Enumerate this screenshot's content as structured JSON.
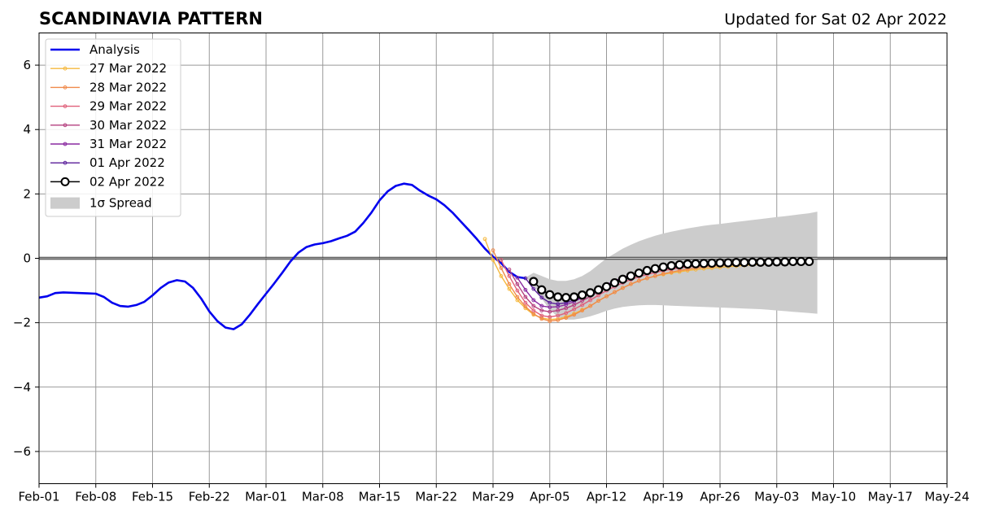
{
  "chart_data": {
    "type": "line",
    "title": "SCANDINAVIA PATTERN",
    "subtitle": "Updated for Sat 02 Apr 2022",
    "xlabel": "",
    "ylabel": "",
    "ylim": [
      -7,
      7
    ],
    "yticks": [
      -6,
      -4,
      -2,
      0,
      2,
      4,
      6
    ],
    "ytick_labels": [
      "−6",
      "−4",
      "−2",
      "0",
      "2",
      "4",
      "6"
    ],
    "xlim": [
      "2022-02-01",
      "2022-05-24"
    ],
    "xticks": [
      "2022-02-01",
      "2022-02-08",
      "2022-02-15",
      "2022-02-22",
      "2022-03-01",
      "2022-03-08",
      "2022-03-15",
      "2022-03-22",
      "2022-03-29",
      "2022-04-05",
      "2022-04-12",
      "2022-04-19",
      "2022-04-26",
      "2022-05-03",
      "2022-05-10",
      "2022-05-17",
      "2022-05-24"
    ],
    "xtick_labels": [
      "Feb-01",
      "Feb-08",
      "Feb-15",
      "Feb-22",
      "Mar-01",
      "Mar-08",
      "Mar-15",
      "Mar-22",
      "Mar-29",
      "Apr-05",
      "Apr-12",
      "Apr-19",
      "Apr-26",
      "May-03",
      "May-10",
      "May-17",
      "May-24"
    ],
    "grid": true,
    "legend_position": "top-left",
    "analysis": {
      "name": "Analysis",
      "color": "#0000ee",
      "x": [
        "2022-02-01",
        "2022-02-02",
        "2022-02-03",
        "2022-02-04",
        "2022-02-05",
        "2022-02-06",
        "2022-02-07",
        "2022-02-08",
        "2022-02-09",
        "2022-02-10",
        "2022-02-11",
        "2022-02-12",
        "2022-02-13",
        "2022-02-14",
        "2022-02-15",
        "2022-02-16",
        "2022-02-17",
        "2022-02-18",
        "2022-02-19",
        "2022-02-20",
        "2022-02-21",
        "2022-02-22",
        "2022-02-23",
        "2022-02-24",
        "2022-02-25",
        "2022-02-26",
        "2022-02-27",
        "2022-02-28",
        "2022-03-01",
        "2022-03-02",
        "2022-03-03",
        "2022-03-04",
        "2022-03-05",
        "2022-03-06",
        "2022-03-07",
        "2022-03-08",
        "2022-03-09",
        "2022-03-10",
        "2022-03-11",
        "2022-03-12",
        "2022-03-13",
        "2022-03-14",
        "2022-03-15",
        "2022-03-16",
        "2022-03-17",
        "2022-03-18",
        "2022-03-19",
        "2022-03-20",
        "2022-03-21",
        "2022-03-22",
        "2022-03-23",
        "2022-03-24",
        "2022-03-25",
        "2022-03-26",
        "2022-03-27",
        "2022-03-28",
        "2022-03-29",
        "2022-03-30",
        "2022-03-31",
        "2022-04-01",
        "2022-04-02"
      ],
      "y": [
        -1.22,
        -1.18,
        -1.08,
        -1.06,
        -1.07,
        -1.08,
        -1.09,
        -1.1,
        -1.2,
        -1.38,
        -1.48,
        -1.5,
        -1.45,
        -1.35,
        -1.15,
        -0.92,
        -0.75,
        -0.68,
        -0.72,
        -0.92,
        -1.25,
        -1.65,
        -1.95,
        -2.15,
        -2.2,
        -2.05,
        -1.75,
        -1.42,
        -1.1,
        -0.78,
        -0.45,
        -0.1,
        0.18,
        0.35,
        0.43,
        0.47,
        0.53,
        0.62,
        0.7,
        0.83,
        1.1,
        1.42,
        1.8,
        2.08,
        2.25,
        2.32,
        2.28,
        2.1,
        1.95,
        1.83,
        1.65,
        1.42,
        1.15,
        0.88,
        0.6,
        0.3,
        0.05,
        -0.15,
        -0.42,
        -0.58,
        -0.62
      ]
    },
    "forecasts": [
      {
        "name": "27 Mar 2022",
        "color": "#f5b83d",
        "start": "2022-03-28",
        "y": [
          0.6,
          -0.05,
          -0.55,
          -0.95,
          -1.3,
          -1.55,
          -1.75,
          -1.85,
          -1.9,
          -1.88,
          -1.82,
          -1.72,
          -1.6,
          -1.48,
          -1.32,
          -1.18,
          -1.05,
          -0.92,
          -0.8,
          -0.7,
          -0.62,
          -0.55,
          -0.5,
          -0.45,
          -0.42,
          -0.38,
          -0.35,
          -0.32,
          -0.3,
          -0.28,
          -0.26,
          -0.24,
          -0.22,
          -0.2,
          -0.19,
          -0.18
        ]
      },
      {
        "name": "28 Mar 2022",
        "color": "#f08a4b",
        "start": "2022-03-29",
        "y": [
          0.25,
          -0.3,
          -0.8,
          -1.2,
          -1.5,
          -1.72,
          -1.88,
          -1.95,
          -1.92,
          -1.85,
          -1.75,
          -1.62,
          -1.48,
          -1.32,
          -1.18,
          -1.05,
          -0.92,
          -0.8,
          -0.7,
          -0.62,
          -0.55,
          -0.48,
          -0.43,
          -0.38,
          -0.34,
          -0.3,
          -0.27,
          -0.25,
          -0.23,
          -0.21,
          -0.2,
          -0.18,
          -0.17,
          -0.16
        ]
      },
      {
        "name": "29 Mar 2022",
        "color": "#e0607a",
        "start": "2022-03-30",
        "y": [
          -0.05,
          -0.55,
          -1.0,
          -1.38,
          -1.62,
          -1.78,
          -1.82,
          -1.78,
          -1.7,
          -1.58,
          -1.45,
          -1.3,
          -1.15,
          -1.0,
          -0.88,
          -0.76,
          -0.66,
          -0.57,
          -0.5,
          -0.44,
          -0.38,
          -0.34,
          -0.3,
          -0.27,
          -0.24,
          -0.22,
          -0.2,
          -0.18,
          -0.17,
          -0.16,
          -0.15,
          -0.14,
          -0.13
        ]
      },
      {
        "name": "30 Mar 2022",
        "color": "#b4407f",
        "start": "2022-03-31",
        "y": [
          -0.35,
          -0.8,
          -1.2,
          -1.48,
          -1.62,
          -1.66,
          -1.62,
          -1.55,
          -1.45,
          -1.32,
          -1.18,
          -1.04,
          -0.9,
          -0.78,
          -0.67,
          -0.58,
          -0.5,
          -0.43,
          -0.38,
          -0.33,
          -0.29,
          -0.26,
          -0.23,
          -0.21,
          -0.19,
          -0.17,
          -0.16,
          -0.15,
          -0.14,
          -0.13,
          -0.12,
          -0.12
        ]
      },
      {
        "name": "31 Mar 2022",
        "color": "#8a2aa0",
        "start": "2022-04-01",
        "y": [
          -0.6,
          -0.98,
          -1.3,
          -1.48,
          -1.52,
          -1.5,
          -1.44,
          -1.35,
          -1.22,
          -1.09,
          -0.95,
          -0.82,
          -0.7,
          -0.6,
          -0.51,
          -0.44,
          -0.38,
          -0.33,
          -0.29,
          -0.26,
          -0.23,
          -0.21,
          -0.19,
          -0.17,
          -0.16,
          -0.15,
          -0.14,
          -0.13,
          -0.12,
          -0.12,
          -0.11
        ]
      },
      {
        "name": "01 Apr 2022",
        "color": "#5a1e9a",
        "start": "2022-04-02",
        "y": [
          -0.62,
          -0.95,
          -1.22,
          -1.38,
          -1.42,
          -1.38,
          -1.3,
          -1.2,
          -1.08,
          -0.96,
          -0.84,
          -0.72,
          -0.62,
          -0.53,
          -0.46,
          -0.4,
          -0.35,
          -0.31,
          -0.27,
          -0.24,
          -0.22,
          -0.2,
          -0.18,
          -0.17,
          -0.16,
          -0.15,
          -0.14,
          -0.13,
          -0.12,
          -0.12
        ]
      }
    ],
    "current_forecast": {
      "name": "02 Apr 2022",
      "color": "#000000",
      "marker_fill": "#ffffff",
      "start": "2022-04-03",
      "y": [
        -0.72,
        -0.98,
        -1.13,
        -1.2,
        -1.22,
        -1.2,
        -1.14,
        -1.07,
        -0.98,
        -0.88,
        -0.76,
        -0.65,
        -0.55,
        -0.46,
        -0.38,
        -0.32,
        -0.27,
        -0.23,
        -0.2,
        -0.18,
        -0.17,
        -0.16,
        -0.15,
        -0.14,
        -0.14,
        -0.13,
        -0.13,
        -0.12,
        -0.12,
        -0.12,
        -0.11,
        -0.11,
        -0.1,
        -0.1,
        -0.1
      ]
    },
    "spread": {
      "name": "1σ Spread",
      "color": "#cccccc",
      "start": "2022-04-02",
      "upper": [
        -0.6,
        -0.45,
        -0.55,
        -0.65,
        -0.7,
        -0.7,
        -0.65,
        -0.55,
        -0.4,
        -0.2,
        0.0,
        0.15,
        0.3,
        0.42,
        0.53,
        0.62,
        0.7,
        0.77,
        0.83,
        0.88,
        0.93,
        0.97,
        1.01,
        1.04,
        1.07,
        1.1,
        1.13,
        1.16,
        1.19,
        1.22,
        1.25,
        1.28,
        1.31,
        1.34,
        1.37,
        1.4,
        1.45
      ],
      "lower": [
        -0.6,
        -0.8,
        -1.25,
        -1.6,
        -1.82,
        -1.9,
        -1.9,
        -1.86,
        -1.8,
        -1.72,
        -1.63,
        -1.56,
        -1.51,
        -1.48,
        -1.46,
        -1.45,
        -1.45,
        -1.46,
        -1.47,
        -1.48,
        -1.49,
        -1.5,
        -1.51,
        -1.52,
        -1.53,
        -1.54,
        -1.55,
        -1.56,
        -1.57,
        -1.58,
        -1.6,
        -1.62,
        -1.64,
        -1.66,
        -1.68,
        -1.7,
        -1.72
      ]
    }
  }
}
